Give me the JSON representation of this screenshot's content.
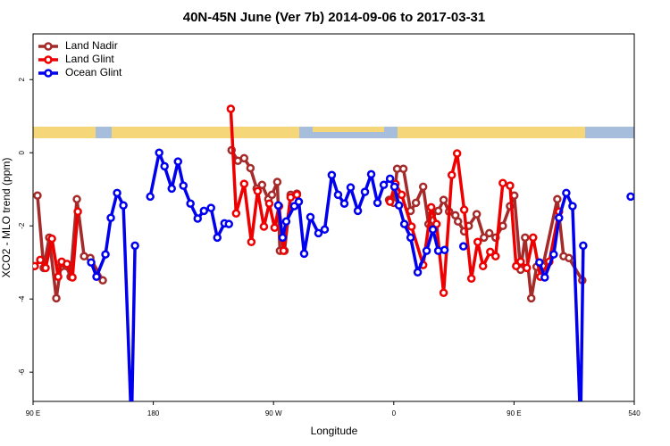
{
  "chart_data": {
    "type": "line",
    "title": "40N-45N June (Ver 7b)   2014-09-06 to 2017-03-31",
    "x_label": "Longitude",
    "y_label": "XCO2 - MLO trend (ppm)",
    "xlim": [
      90,
      540
    ],
    "ylim": [
      -6.8,
      3.25
    ],
    "xticks": [
      {
        "value": 90,
        "label": "90 E"
      },
      180,
      {
        "value": 270,
        "label": "90 W"
      },
      {
        "value": 360,
        "label": "0"
      },
      {
        "value": 450,
        "label": "90 E"
      },
      540
    ],
    "yticks": [
      -6,
      -4,
      -2,
      0,
      2
    ],
    "legend": "top-left",
    "series": [
      {
        "name": "Land Nadir",
        "color": "#a52a2a",
        "x": [
          93.3,
          98.0,
          102.1,
          107.4,
          110.8,
          114.8,
          118.1,
          122.8,
          128.2,
          132.9,
          142.2,
          null,
          238.6,
          243.3,
          248.0,
          252.7,
          257.4,
          261.4,
          266.1,
          268.8,
          272.8,
          274.8,
          278.2,
          282.8,
          287.5,
          null,
          356.5,
          359.9,
          362.5,
          367.2,
          372.6,
          376.6,
          382.0,
          386.0,
          388.6,
          393.3,
          397.3,
          401.4,
          406.1,
          408.1,
          412.7,
          416.1,
          422.1,
          427.5,
          431.5,
          436.2,
          441.6,
          447.0,
          450.2,
          454.9,
          458.3,
          462.9,
          466.9,
          471.6,
          482.4,
          487.1,
          491.1,
          501.1
        ],
        "values": [
          -1.17,
          -3.15,
          -2.32,
          -3.98,
          -3.12,
          -3.1,
          -3.39,
          -1.27,
          -2.83,
          -2.88,
          -3.49,
          null,
          0.07,
          -0.22,
          -0.15,
          -0.42,
          -0.98,
          -0.88,
          -1.27,
          -1.15,
          -0.8,
          -2.68,
          -2.68,
          -1.15,
          -1.12,
          null,
          -1.29,
          -1.37,
          -0.44,
          -0.44,
          -1.59,
          -1.37,
          -0.93,
          -1.95,
          -1.68,
          -1.59,
          -1.29,
          -1.61,
          -1.71,
          -1.88,
          -2.15,
          -2.0,
          -1.68,
          -2.32,
          -2.2,
          -2.32,
          -2.0,
          -1.46,
          -1.17,
          -3.2,
          -2.32,
          -3.98,
          -3.12,
          -3.1,
          -1.27,
          -2.83,
          -2.88,
          -3.49
        ]
      },
      {
        "name": "Land Glint",
        "color": "#ee0000",
        "x": [
          91.3,
          95.4,
          99.4,
          104.1,
          108.8,
          111.4,
          115.4,
          119.5,
          123.5,
          null,
          238.0,
          242.0,
          248.0,
          253.4,
          258.1,
          262.8,
          266.8,
          270.8,
          274.1,
          277.5,
          282.8,
          287.5,
          null,
          357.2,
          361.2,
          365.9,
          373.3,
          382.0,
          388.0,
          392.0,
          397.3,
          403.4,
          407.4,
          412.7,
          418.1,
          422.8,
          426.8,
          432.2,
          436.2,
          441.6,
          447.0,
          451.6,
          455.0,
          459.6,
          464.3,
          469.7,
          476.4,
          483.7
        ],
        "values": [
          -3.1,
          -2.93,
          -3.15,
          -2.35,
          -3.39,
          -2.98,
          -3.04,
          -3.41,
          -1.61,
          null,
          1.2,
          -1.66,
          -0.85,
          -2.44,
          -1.05,
          -2.02,
          -1.39,
          -2.05,
          -1.46,
          -2.68,
          -1.22,
          -1.15,
          null,
          -1.34,
          -0.85,
          -1.15,
          -2.02,
          -3.07,
          -1.49,
          -1.95,
          -3.83,
          -0.61,
          -0.02,
          -1.56,
          -3.44,
          -2.44,
          -3.1,
          -2.71,
          -2.83,
          -0.83,
          -0.9,
          -3.1,
          -2.98,
          -3.15,
          -2.32,
          -3.39,
          -2.98,
          -1.61
        ]
      },
      {
        "name": "Ocean Glint",
        "color": "#0000ee",
        "x": [
          133.5,
          137.5,
          144.2,
          148.2,
          152.9,
          157.6,
          163.7,
          166.3,
          null,
          177.7,
          184.4,
          188.4,
          193.8,
          198.5,
          202.5,
          207.8,
          213.2,
          217.9,
          223.2,
          227.9,
          233.3,
          236.6,
          null,
          273.5,
          276.8,
          279.5,
          285.5,
          288.9,
          292.9,
          297.6,
          303.6,
          308.3,
          313.6,
          318.3,
          323.0,
          327.7,
          333.1,
          338.4,
          343.1,
          347.8,
          352.5,
          357.2,
          360.5,
          363.9,
          367.9,
          372.6,
          377.9,
          384.6,
          389.3,
          393.3,
          398.0,
          null,
          412.1,
          null,
          469.0,
          473.0,
          479.7,
          483.7,
          489.1,
          493.8,
          499.8,
          501.8,
          null,
          537.3
        ],
        "values": [
          -3.0,
          -3.39,
          -2.78,
          -1.78,
          -1.1,
          -1.44,
          -7.5,
          -2.54,
          null,
          -1.2,
          0.0,
          -0.37,
          -0.98,
          -0.24,
          -0.9,
          -1.39,
          -1.8,
          -1.59,
          -1.51,
          -2.32,
          -1.93,
          -1.95,
          null,
          -1.44,
          -2.32,
          -1.88,
          -1.46,
          -1.34,
          -2.76,
          -1.76,
          -2.2,
          -2.1,
          -0.61,
          -1.15,
          -1.39,
          -0.95,
          -1.59,
          -1.07,
          -0.59,
          -1.37,
          -0.88,
          -0.71,
          -0.93,
          -1.44,
          -1.95,
          -2.32,
          -3.27,
          -2.68,
          -2.1,
          -2.68,
          -2.66,
          null,
          -2.56,
          null,
          -3.0,
          -3.41,
          -2.78,
          -1.78,
          -1.1,
          -1.46,
          -7.5,
          -2.54,
          null,
          -1.2
        ]
      }
    ]
  }
}
